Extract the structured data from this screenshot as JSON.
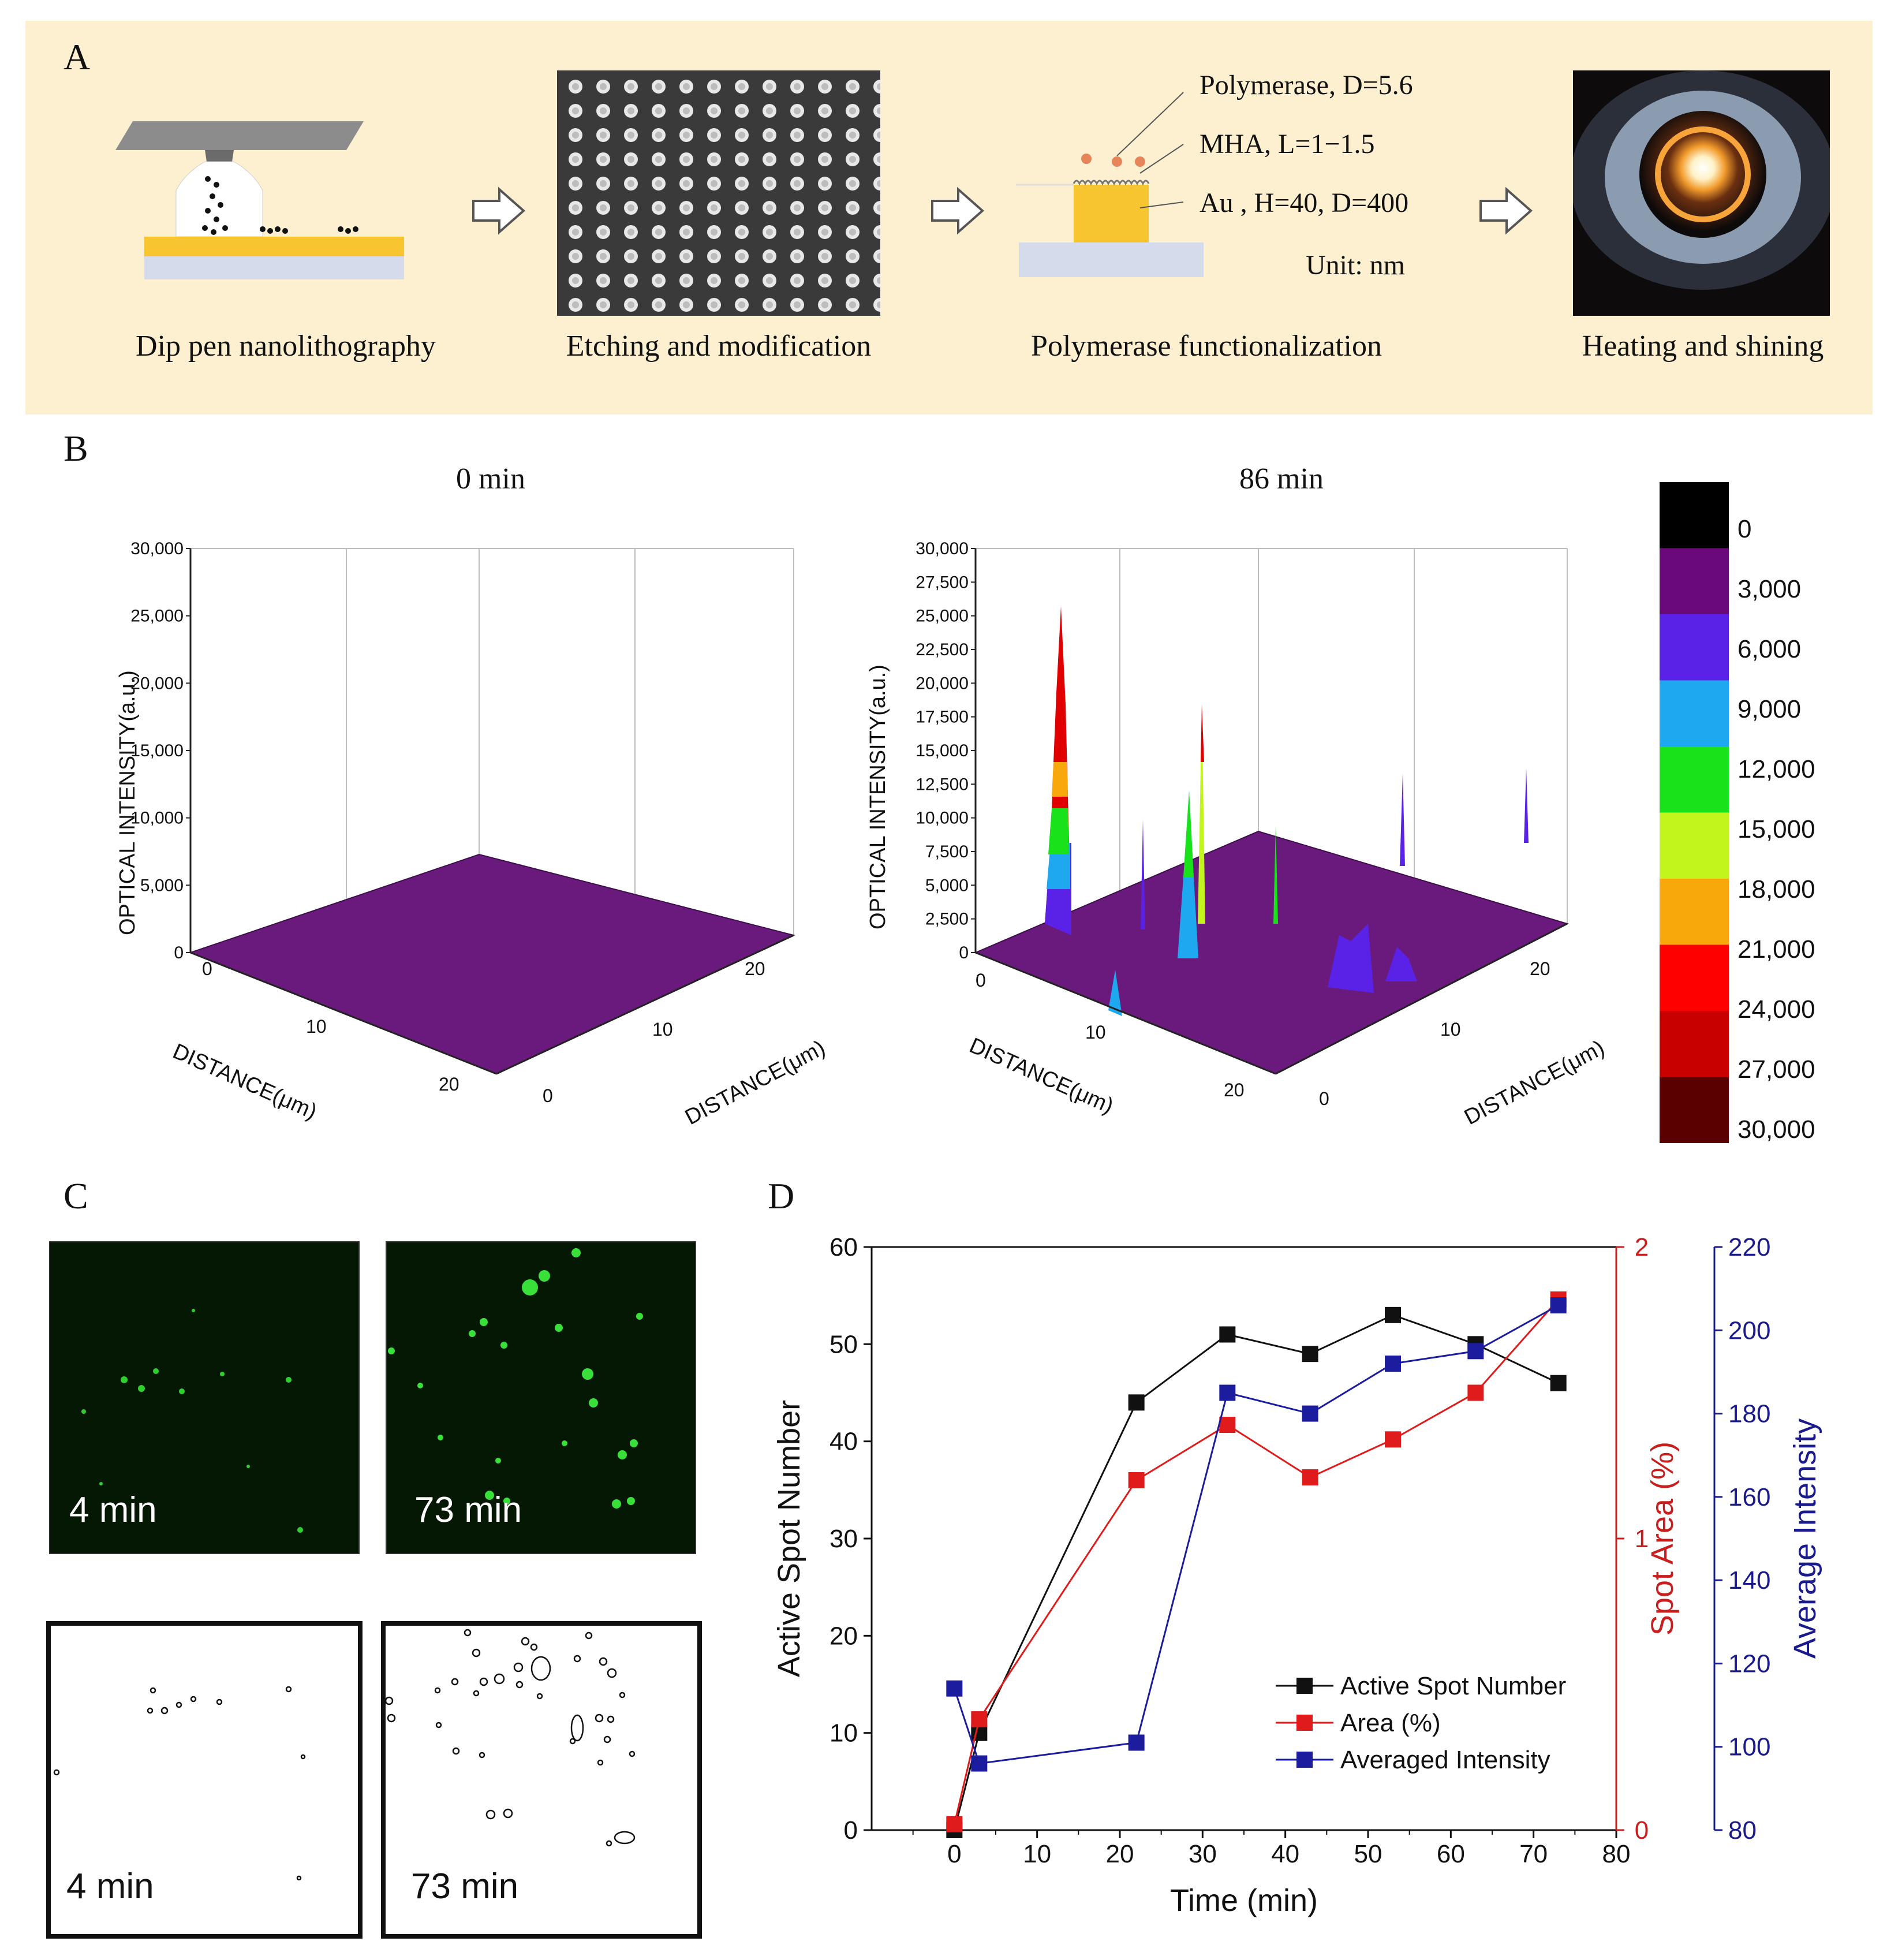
{
  "panels": {
    "a": {
      "letter": "A",
      "steps": [
        "Dip pen nanolithography",
        "Etching and modification",
        "Polymerase functionalization",
        "Heating and shining"
      ],
      "annotations": [
        "Polymerase,  D=5.6",
        "MHA, L=1−1.5",
        "Au ,  H=40, D=400",
        "Unit: nm"
      ]
    },
    "b": {
      "letter": "B",
      "left_title": "0 min",
      "right_title": "86 min",
      "z_label": "OPTICAL INTENSITY(a.u.)",
      "x_label": "DISTANCE(μm)",
      "y_label": "DISTANCE(μm)",
      "left_z_ticks": [
        "0",
        "5,000",
        "10,000",
        "15,000",
        "20,000",
        "25,000",
        "30,000"
      ],
      "right_z_ticks": [
        "0",
        "2,500",
        "5,000",
        "7,500",
        "10,000",
        "12,500",
        "15,000",
        "17,500",
        "20,000",
        "22,500",
        "25,000",
        "27,500",
        "30,000"
      ],
      "x_ticks": [
        "0",
        "10",
        "20"
      ],
      "y_ticks": [
        "0",
        "10",
        "20"
      ],
      "colorbar": {
        "labels": [
          "0",
          "3,000",
          "6,000",
          "9,000",
          "12,000",
          "15,000",
          "18,000",
          "21,000",
          "24,000",
          "27,000",
          "30,000"
        ],
        "colors": [
          "#000000",
          "#6a0a7a",
          "#5a22e6",
          "#1ea8ef",
          "#19e21a",
          "#c2f51c",
          "#f9a80c",
          "#fe0000",
          "#c80000",
          "#5a0000"
        ]
      }
    },
    "c": {
      "letter": "C",
      "labels": [
        "4 min",
        "73 min",
        "4 min",
        "73 min"
      ]
    },
    "d": {
      "letter": "D"
    }
  },
  "chart_data": {
    "type": "line",
    "xlabel": "Time (min)",
    "x_ticks": [
      "0",
      "10",
      "20",
      "30",
      "40",
      "50",
      "60",
      "70",
      "80"
    ],
    "xlim": [
      -10,
      80
    ],
    "axes": [
      {
        "label": "Active Spot Number",
        "ylim": [
          0,
          60
        ],
        "ticks": [
          "0",
          "10",
          "20",
          "30",
          "40",
          "50",
          "60"
        ],
        "color": "#111111"
      },
      {
        "label": "Spot Area (%)",
        "ylim": [
          0,
          2
        ],
        "ticks": [
          "0",
          "1",
          "2"
        ],
        "color": "#c81e1e"
      },
      {
        "label": "Average Intensity",
        "ylim": [
          80,
          220
        ],
        "ticks": [
          "80",
          "100",
          "120",
          "140",
          "160",
          "180",
          "200",
          "220"
        ],
        "color": "#1a1a8c"
      }
    ],
    "series": [
      {
        "name": "Active Spot Number",
        "axis": 0,
        "color": "#111111",
        "x": [
          0,
          3,
          22,
          33,
          43,
          53,
          63,
          73
        ],
        "y": [
          0,
          10,
          44,
          51,
          49,
          53,
          50,
          46
        ]
      },
      {
        "name": "Area (%)",
        "axis": 1,
        "color": "#e01b1b",
        "x": [
          0,
          3,
          22,
          33,
          43,
          53,
          63,
          73
        ],
        "y": [
          0.02,
          0.38,
          1.2,
          1.39,
          1.21,
          1.34,
          1.5,
          1.82
        ]
      },
      {
        "name": "Averaged Intensity",
        "axis": 2,
        "color": "#1c1c9e",
        "x": [
          0,
          3,
          22,
          33,
          43,
          53,
          63,
          73
        ],
        "y": [
          114,
          96,
          101,
          185,
          180,
          192,
          195,
          206
        ]
      }
    ]
  }
}
